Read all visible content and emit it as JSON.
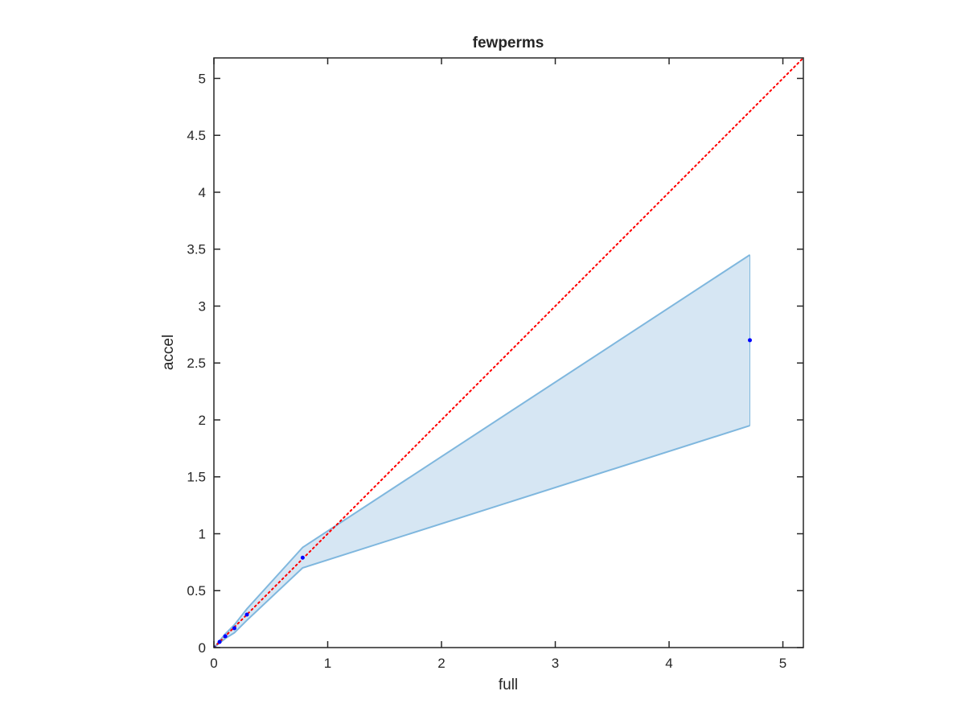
{
  "chart_data": {
    "type": "scatter",
    "title": "fewperms",
    "xlabel": "full",
    "ylabel": "accel",
    "xlim": [
      0,
      5.18
    ],
    "ylim": [
      0,
      5.18
    ],
    "xticks": [
      0,
      1,
      2,
      3,
      4,
      5
    ],
    "yticks": [
      0,
      0.5,
      1,
      1.5,
      2,
      2.5,
      3,
      3.5,
      4,
      4.5,
      5
    ],
    "xtick_labels": [
      "0",
      "1",
      "2",
      "3",
      "4",
      "5"
    ],
    "ytick_labels": [
      "0",
      "0.5",
      "1",
      "1.5",
      "2",
      "2.5",
      "3",
      "3.5",
      "4",
      "4.5",
      "5"
    ],
    "grid": false,
    "points": {
      "x": [
        0.0,
        0.05,
        0.1,
        0.18,
        0.29,
        0.78,
        4.71
      ],
      "y": [
        0.0,
        0.05,
        0.1,
        0.17,
        0.29,
        0.79,
        2.7
      ],
      "color": "#0000ff"
    },
    "band": {
      "x": [
        0.0,
        0.05,
        0.1,
        0.18,
        0.29,
        0.78,
        4.71
      ],
      "upper": [
        0.0,
        0.06,
        0.12,
        0.2,
        0.34,
        0.88,
        3.45
      ],
      "lower": [
        0.0,
        0.04,
        0.08,
        0.13,
        0.24,
        0.7,
        1.95
      ],
      "fill_color": "#d6e6f3",
      "line_color": "#7fb7de"
    },
    "reference_line": {
      "x": [
        0,
        5.18
      ],
      "y": [
        0,
        5.18
      ],
      "color": "#ff0000",
      "style": "dotted"
    }
  }
}
